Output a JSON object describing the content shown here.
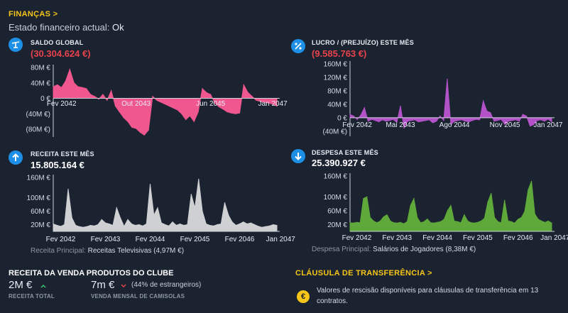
{
  "header": {
    "title": "FINANÇAS",
    "chevron": ">",
    "status_label": "Estado financeiro actual:",
    "status_value": "Ok"
  },
  "cards": {
    "saldo": {
      "label": "SALDO GLOBAL",
      "value": "(30.304.624 €)",
      "icon": "balance-scale-icon"
    },
    "lucro": {
      "label": "LUCRO / (PREJUÍZO) ESTE MÊS",
      "value": "(9.585.763 €)",
      "icon": "percent-icon"
    },
    "receita": {
      "label": "RECEITA ESTE MÊS",
      "value": "15.805.164 €",
      "icon": "arrow-up-icon",
      "principal_label": "Receita Principal:",
      "principal_value": "Receitas Televisivas (4,97M €)"
    },
    "despesa": {
      "label": "DESPESA ESTE MÊS",
      "value": "25.390.927 €",
      "icon": "arrow-down-icon",
      "principal_label": "Despesa Principal:",
      "principal_value": "Salários de Jogadores (8,38M €)"
    }
  },
  "merch": {
    "title": "RECEITA DA VENDA PRODUTOS DO CLUBE",
    "total_value": "2M €",
    "total_label": "RECEITA TOTAL",
    "monthly_value": "7m €",
    "monthly_note": "(44% de estrangeiros)",
    "monthly_label": "VENDA MENSAL DE CAMISOLAS",
    "up_icon": "trend-up-icon",
    "down_icon": "trend-down-icon"
  },
  "clause": {
    "title": "CLÁUSULA DE TRANSFERÊNCIA",
    "chevron": ">",
    "icon_symbol": "€",
    "text": "Valores de rescisão disponíveis para cláusulas de transferência em 13 contratos."
  },
  "colors": {
    "saldo": "#f0578f",
    "lucro": "#b352c8",
    "receita": "#cfd0d2",
    "despesa": "#5fa83a"
  },
  "chart_data": [
    {
      "id": "saldo",
      "type": "area",
      "title": "SALDO GLOBAL",
      "ylim": [
        -100,
        80
      ],
      "yticks": [
        80,
        40,
        0,
        -40,
        -80
      ],
      "ytick_labels": [
        "80M €",
        "40M €",
        "0 €",
        "(40M €)",
        "(80M €)"
      ],
      "xtick_labels": [
        "Fev 2042",
        "Out 2043",
        "Jun 2045",
        "Jan 2047"
      ],
      "xtick_pos": [
        2,
        20,
        38,
        53
      ],
      "values": [
        30,
        35,
        28,
        45,
        75,
        40,
        30,
        28,
        25,
        10,
        5,
        -2,
        10,
        -5,
        20,
        -20,
        -35,
        -50,
        -60,
        -75,
        -78,
        -88,
        -95,
        -82,
        5,
        -5,
        -10,
        -15,
        -20,
        -25,
        -30,
        -40,
        -55,
        -45,
        -60,
        -35,
        25,
        15,
        10,
        -12,
        -22,
        -28,
        -35,
        -38,
        -40,
        -38,
        35,
        15,
        5,
        -5,
        -8,
        -10,
        -12,
        -15,
        -20
      ]
    },
    {
      "id": "lucro",
      "type": "area",
      "title": "LUCRO / (PREJUÍZO) ESTE MÊS",
      "ylim": [
        -55,
        160
      ],
      "yticks": [
        160,
        120,
        80,
        40,
        0,
        -40
      ],
      "ytick_labels": [
        "160M €",
        "120M €",
        "80M €",
        "40M €",
        "0 €",
        "(40M €)"
      ],
      "xtick_labels": [
        "Fev 2042",
        "Mai 2043",
        "Ago 2044",
        "Nov 2045",
        "Jan 2047"
      ],
      "xtick_pos": [
        2,
        14,
        29,
        43,
        55
      ],
      "values": [
        10,
        5,
        -5,
        8,
        30,
        -10,
        -5,
        -8,
        -12,
        -6,
        -10,
        -8,
        -5,
        -14,
        35,
        -30,
        -10,
        -8,
        -6,
        -12,
        -10,
        -8,
        -6,
        -15,
        -10,
        5,
        -8,
        115,
        -20,
        -10,
        -8,
        -6,
        -10,
        -12,
        -8,
        -5,
        -6,
        50,
        20,
        15,
        -10,
        -8,
        -5,
        -20,
        -10,
        -8,
        -6,
        -10,
        10,
        5,
        -25,
        -20,
        -8,
        -6,
        -10,
        -4,
        -12
      ]
    },
    {
      "id": "receita",
      "type": "area",
      "title": "RECEITA ESTE MÊS",
      "ylim": [
        0,
        160
      ],
      "yticks": [
        160,
        100,
        60,
        20
      ],
      "ytick_labels": [
        "160M €",
        "100M €",
        "60M €",
        "20M €"
      ],
      "xtick_labels": [
        "Fev 2042",
        "Fev 2043",
        "Fev 2044",
        "Fev 2045",
        "Fev 2046",
        "Jan 2047"
      ],
      "xtick_pos": [
        2,
        14,
        26,
        38,
        50,
        61
      ],
      "values": [
        22,
        18,
        15,
        20,
        125,
        40,
        18,
        14,
        12,
        14,
        18,
        16,
        20,
        35,
        25,
        22,
        18,
        70,
        40,
        15,
        35,
        22,
        18,
        20,
        16,
        22,
        140,
        48,
        70,
        25,
        20,
        16,
        28,
        18,
        22,
        18,
        20,
        110,
        70,
        155,
        60,
        22,
        18,
        16,
        20,
        22,
        85,
        48,
        28,
        18,
        22,
        28,
        22,
        25,
        20,
        15,
        12,
        14,
        16,
        20,
        18
      ]
    },
    {
      "id": "despesa",
      "type": "area",
      "title": "DESPESA ESTE MÊS",
      "ylim": [
        0,
        160
      ],
      "yticks": [
        160,
        100,
        60,
        20
      ],
      "ytick_labels": [
        "160M €",
        "100M €",
        "60M €",
        "20M €"
      ],
      "xtick_labels": [
        "Fev 2042",
        "Fev 2043",
        "Fev 2044",
        "Fev 2045",
        "Fev 2046",
        "Jan 2047"
      ],
      "xtick_pos": [
        2,
        14,
        26,
        38,
        50,
        61
      ],
      "values": [
        25,
        24,
        26,
        25,
        95,
        100,
        40,
        30,
        25,
        30,
        42,
        48,
        30,
        25,
        24,
        26,
        22,
        28,
        75,
        95,
        40,
        25,
        28,
        36,
        25,
        24,
        26,
        28,
        35,
        60,
        75,
        30,
        28,
        25,
        48,
        30,
        25,
        24,
        26,
        30,
        38,
        85,
        110,
        40,
        28,
        25,
        90,
        30,
        28,
        24,
        35,
        40,
        58,
        120,
        145,
        50,
        35,
        30,
        26,
        30,
        24
      ]
    }
  ]
}
